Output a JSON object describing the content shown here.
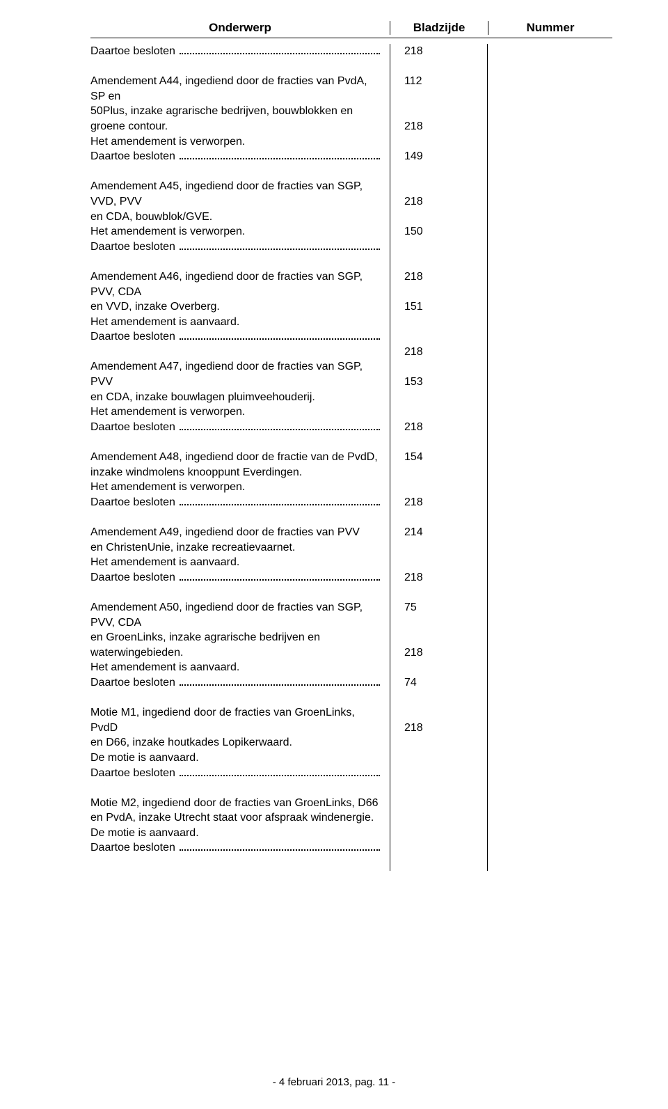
{
  "header": {
    "onderwerp": "Onderwerp",
    "bladzijde": "Bladzijde",
    "nummer": "Nummer"
  },
  "first_decision": {
    "label": "Daartoe besloten",
    "page": "218"
  },
  "entries": [
    {
      "lines": [
        {
          "text": "Amendement A44, ingediend door de fracties van PvdA, SP en",
          "page": "112"
        },
        {
          "text": "50Plus, inzake agrarische bedrijven, bouwblokken en groene contour.",
          "page": ""
        },
        {
          "text": "Het amendement is verworpen.",
          "page": ""
        }
      ],
      "decision": {
        "label": "Daartoe besloten",
        "page": "218"
      }
    },
    {
      "lines": [
        {
          "text": "Amendement A45, ingediend door de fracties van SGP, VVD, PVV",
          "page": "149"
        },
        {
          "text": "en CDA, bouwblok/GVE.",
          "page": ""
        },
        {
          "text": "Het amendement is verworpen.",
          "page": ""
        }
      ],
      "decision": {
        "label": "Daartoe besloten",
        "page": "218"
      }
    },
    {
      "lines": [
        {
          "text": "Amendement A46, ingediend door de fracties van SGP, PVV, CDA",
          "page": "150"
        },
        {
          "text": "en VVD, inzake Overberg.",
          "page": ""
        },
        {
          "text": "Het amendement is aanvaard.",
          "page": ""
        }
      ],
      "decision": {
        "label": "Daartoe besloten",
        "page": "218"
      }
    },
    {
      "lines": [
        {
          "text": "Amendement A47, ingediend door de fracties van SGP, PVV",
          "page": "151"
        },
        {
          "text": "en CDA, inzake bouwlagen pluimveehouderij.",
          "page": ""
        },
        {
          "text": "Het amendement is verworpen.",
          "page": ""
        }
      ],
      "decision": {
        "label": "Daartoe besloten",
        "page": "218"
      }
    },
    {
      "lines": [
        {
          "text": "Amendement A48, ingediend door de fractie van de PvdD,",
          "page": "153"
        },
        {
          "text": "inzake windmolens knooppunt Everdingen.",
          "page": ""
        },
        {
          "text": "Het amendement is verworpen.",
          "page": ""
        }
      ],
      "decision": {
        "label": "Daartoe besloten",
        "page": "218"
      }
    },
    {
      "lines": [
        {
          "text": "Amendement A49, ingediend door de fracties van PVV",
          "page": "154"
        },
        {
          "text": "en ChristenUnie, inzake recreatievaarnet.",
          "page": ""
        },
        {
          "text": "Het amendement is aanvaard.",
          "page": ""
        }
      ],
      "decision": {
        "label": "Daartoe besloten",
        "page": "218"
      }
    },
    {
      "lines": [
        {
          "text": "Amendement A50, ingediend door de fracties van SGP, PVV, CDA",
          "page": "214"
        },
        {
          "text": "en GroenLinks, inzake agrarische bedrijven en waterwingebieden.",
          "page": ""
        },
        {
          "text": "Het amendement is aanvaard.",
          "page": ""
        }
      ],
      "decision": {
        "label": "Daartoe besloten",
        "page": "218"
      }
    },
    {
      "lines": [
        {
          "text": "Motie M1, ingediend door de fracties van GroenLinks, PvdD",
          "page": "75"
        },
        {
          "text": "en D66, inzake houtkades Lopikerwaard.",
          "page": ""
        },
        {
          "text": "De motie is aanvaard.",
          "page": ""
        }
      ],
      "decision": {
        "label": "Daartoe besloten",
        "page": "218"
      }
    },
    {
      "lines": [
        {
          "text": "Motie M2, ingediend door de fracties van GroenLinks, D66",
          "page": "74"
        },
        {
          "text": "en PvdA, inzake Utrecht staat voor afspraak windenergie.",
          "page": ""
        },
        {
          "text": "De motie is aanvaard.",
          "page": ""
        }
      ],
      "decision": {
        "label": "Daartoe besloten",
        "page": "218"
      }
    }
  ],
  "footer": "- 4 februari 2013, pag. 11 -"
}
